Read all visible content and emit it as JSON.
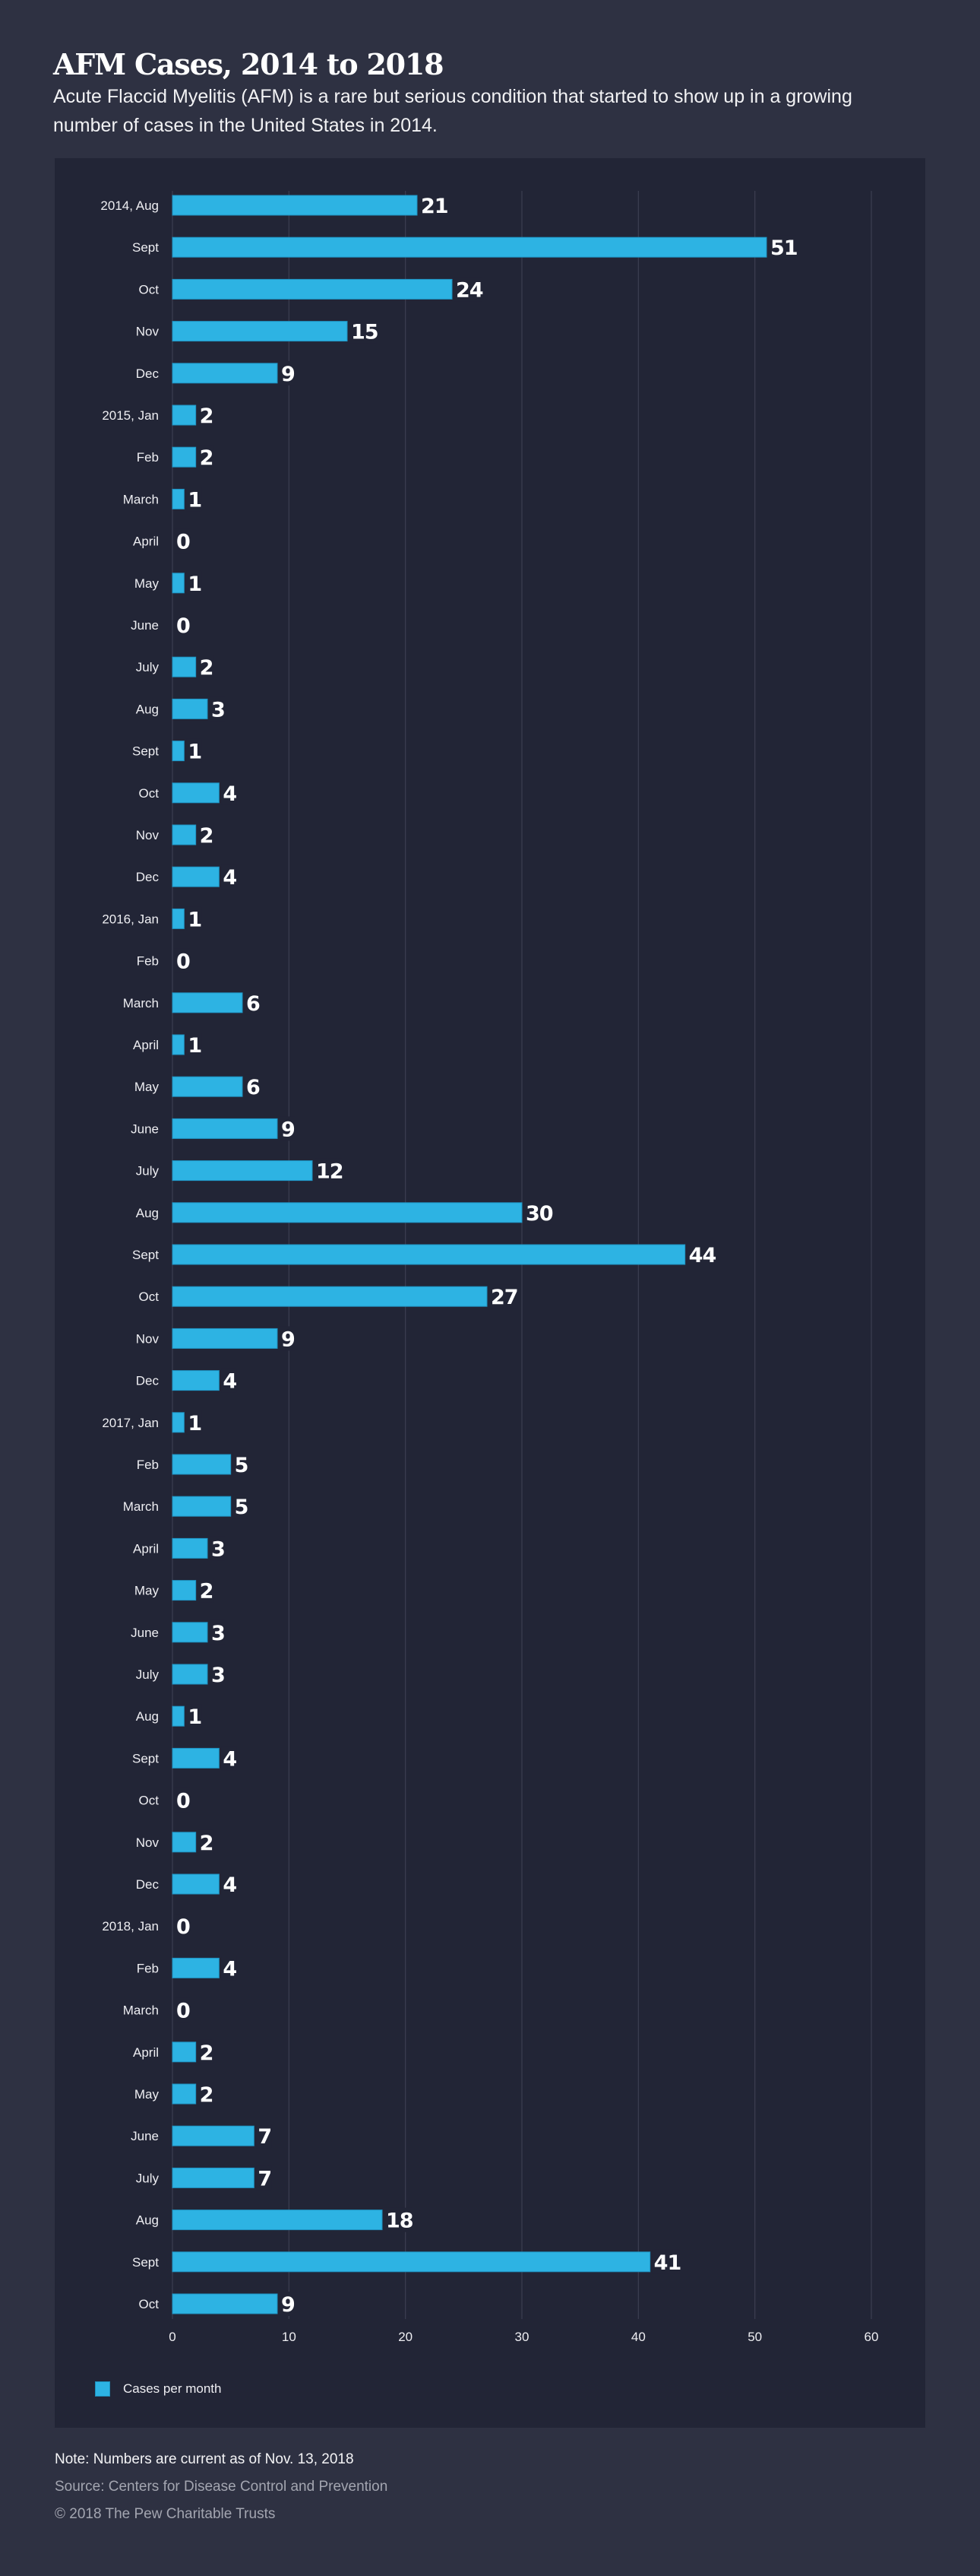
{
  "header": {
    "title": "AFM Cases, 2014 to 2018",
    "subtitle": "Acute Flaccid Myelitis (AFM) is a rare but serious condition that started to show up in a growing number of cases in the United States in 2014."
  },
  "colors": {
    "page_background": "#2e3142",
    "panel_background": "#222536",
    "bar": "#2db3e3",
    "gridline": "#3a3d4f",
    "text": "#ffffff",
    "muted_text": "#a3a5b0"
  },
  "chart_data": {
    "type": "bar",
    "orientation": "horizontal",
    "title": "AFM Cases, 2014 to 2018",
    "xlabel": "",
    "ylabel": "",
    "xlim": [
      0,
      60
    ],
    "xticks": [
      0,
      10,
      20,
      30,
      40,
      50,
      60
    ],
    "grid": true,
    "legend": {
      "position": "bottom-left",
      "entries": [
        "Cases per month"
      ]
    },
    "categories": [
      "2014, Aug",
      "Sept",
      "Oct",
      "Nov",
      "Dec",
      "2015, Jan",
      "Feb",
      "March",
      "April",
      "May",
      "June",
      "July",
      "Aug",
      "Sept",
      "Oct",
      "Nov",
      "Dec",
      "2016, Jan",
      "Feb",
      "March",
      "April",
      "May",
      "June",
      "July",
      "Aug",
      "Sept",
      "Oct",
      "Nov",
      "Dec",
      "2017, Jan",
      "Feb",
      "March",
      "April",
      "May",
      "June",
      "July",
      "Aug",
      "Sept",
      "Oct",
      "Nov",
      "Dec",
      "2018, Jan",
      "Feb",
      "March",
      "April",
      "May",
      "June",
      "July",
      "Aug",
      "Sept",
      "Oct"
    ],
    "series": [
      {
        "name": "Cases per month",
        "values": [
          21,
          51,
          24,
          15,
          9,
          2,
          2,
          1,
          0,
          1,
          0,
          2,
          3,
          1,
          4,
          2,
          4,
          1,
          0,
          6,
          1,
          6,
          9,
          12,
          30,
          44,
          27,
          9,
          4,
          1,
          5,
          5,
          3,
          2,
          3,
          3,
          1,
          4,
          0,
          2,
          4,
          0,
          4,
          0,
          2,
          2,
          7,
          7,
          18,
          41,
          9
        ]
      }
    ]
  },
  "legend": {
    "label": "Cases per month"
  },
  "footer": {
    "note": "Note: Numbers are current as of Nov. 13, 2018",
    "source": "Source: Centers for Disease Control and Prevention",
    "copyright": "© 2018 The Pew Charitable Trusts"
  }
}
